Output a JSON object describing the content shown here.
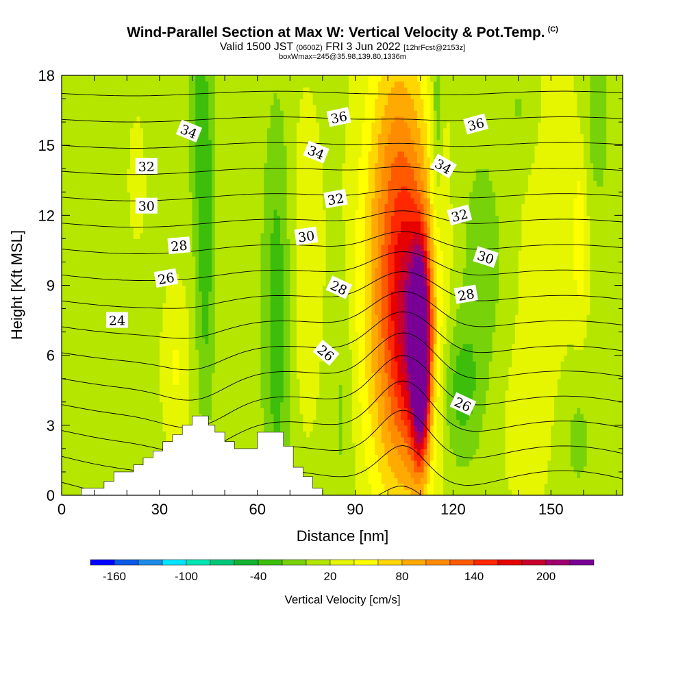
{
  "title_main": "Wind-Parallel Section at Max W: Vertical Velocity & Pot.Temp.",
  "title_copyright": "(C)",
  "subtitle_valid": "Valid 1500 JST",
  "subtitle_utc": "(0600Z)",
  "subtitle_date": "FRI 3 Jun 2022",
  "subtitle_fcst": "[12hrFcst@2153z]",
  "subtitle_box": "boxWmax=245@35.98,139.80,1336m",
  "chart_data": {
    "type": "heatmap",
    "xlabel": "Distance [nm]",
    "ylabel": "Height [Kft MSL]",
    "xlim": [
      0,
      172
    ],
    "ylim": [
      0,
      18
    ],
    "x_ticks": [
      0,
      30,
      60,
      90,
      120,
      150
    ],
    "y_ticks": [
      0,
      3,
      6,
      9,
      12,
      15,
      18
    ],
    "colorbar": {
      "label": "Vertical Velocity [cm/s]",
      "min": -180,
      "max": 240,
      "step": 20,
      "tick_labels": [
        "-160",
        "-100",
        "-40",
        "20",
        "80",
        "140",
        "200"
      ],
      "tick_values": [
        -160,
        -100,
        -40,
        20,
        80,
        140,
        200
      ],
      "colors": [
        "#0000ff",
        "#0a5ae6",
        "#1e8ce6",
        "#00e6ff",
        "#00e6b4",
        "#00c878",
        "#14b432",
        "#3cbe0a",
        "#78d20a",
        "#b4e600",
        "#e6f500",
        "#ffff00",
        "#ffd700",
        "#ffaa00",
        "#ff8c00",
        "#ff5a00",
        "#ff2800",
        "#e60000",
        "#c8002d",
        "#a0006e",
        "#780096"
      ]
    },
    "terrain": [
      [
        0,
        0
      ],
      [
        6,
        0
      ],
      [
        6,
        0.3
      ],
      [
        13,
        0.3
      ],
      [
        13,
        0.6
      ],
      [
        16,
        0.6
      ],
      [
        16,
        1.0
      ],
      [
        22,
        1.0
      ],
      [
        22,
        1.3
      ],
      [
        25,
        1.3
      ],
      [
        25,
        1.6
      ],
      [
        28,
        1.6
      ],
      [
        28,
        1.9
      ],
      [
        31,
        1.9
      ],
      [
        31,
        2.3
      ],
      [
        34,
        2.3
      ],
      [
        34,
        2.6
      ],
      [
        37,
        2.6
      ],
      [
        37,
        3.0
      ],
      [
        40,
        3.0
      ],
      [
        40,
        3.4
      ],
      [
        45,
        3.4
      ],
      [
        45,
        3.0
      ],
      [
        47,
        3.0
      ],
      [
        47,
        2.7
      ],
      [
        50,
        2.7
      ],
      [
        50,
        2.3
      ],
      [
        53,
        2.3
      ],
      [
        53,
        2.0
      ],
      [
        60,
        2.0
      ],
      [
        60,
        2.7
      ],
      [
        68,
        2.7
      ],
      [
        68,
        2.1
      ],
      [
        71,
        2.1
      ],
      [
        71,
        1.2
      ],
      [
        74,
        1.2
      ],
      [
        74,
        0.8
      ],
      [
        77,
        0.8
      ],
      [
        77,
        0.3
      ],
      [
        80,
        0.3
      ],
      [
        80,
        0
      ],
      [
        0,
        0
      ]
    ],
    "velocity_features": [
      {
        "x": 110,
        "z": 6.0,
        "sx": 1.8,
        "sz": 2.8,
        "w": 230
      },
      {
        "x": 108,
        "z": 7.0,
        "sx": 4.0,
        "sz": 3.5,
        "w": 80
      },
      {
        "x": 104,
        "z": 6.5,
        "sx": 7.5,
        "sz": 5.5,
        "w": 90
      },
      {
        "x": 102,
        "z": 11.0,
        "sx": 8.0,
        "sz": 6.0,
        "w": 45
      },
      {
        "x": 104,
        "z": 15.5,
        "sx": 6.0,
        "sz": 4.0,
        "w": 40
      },
      {
        "x": 115,
        "z": 16.0,
        "sx": 1.2,
        "sz": 3.0,
        "w": -40
      },
      {
        "x": 122,
        "z": 4.5,
        "sx": 4.5,
        "sz": 2.2,
        "w": -45
      },
      {
        "x": 129,
        "z": 10.0,
        "sx": 5.0,
        "sz": 3.5,
        "w": -25
      },
      {
        "x": 66,
        "z": 7.5,
        "sx": 3.0,
        "sz": 6.0,
        "w": -45
      },
      {
        "x": 44,
        "z": 10.5,
        "sx": 2.0,
        "sz": 5.0,
        "w": -45
      },
      {
        "x": 42,
        "z": 16.5,
        "sx": 2.5,
        "sz": 3.0,
        "w": -30
      },
      {
        "x": 75,
        "z": 10.0,
        "sx": 3.5,
        "sz": 5.0,
        "w": 25
      },
      {
        "x": 86,
        "z": 4.0,
        "sx": 2.5,
        "sz": 4.0,
        "w": -20
      },
      {
        "x": 35,
        "z": 5.5,
        "sx": 3.0,
        "sz": 2.5,
        "w": 30
      },
      {
        "x": 23,
        "z": 13.5,
        "sx": 3.0,
        "sz": 3.0,
        "w": 12
      },
      {
        "x": 150,
        "z": 12.5,
        "sx": 8.0,
        "sz": 6.0,
        "w": 20
      },
      {
        "x": 159,
        "z": 11.0,
        "sx": 1.5,
        "sz": 2.5,
        "w": 35
      },
      {
        "x": 164,
        "z": 16.0,
        "sx": 3.0,
        "sz": 3.0,
        "w": -25
      },
      {
        "x": 141,
        "z": 16.5,
        "sx": 4.0,
        "sz": 2.0,
        "w": -20
      },
      {
        "x": 5,
        "z": 10.0,
        "sx": 6.0,
        "sz": 8.0,
        "w": -10
      },
      {
        "x": 12,
        "z": 3.0,
        "sx": 6.0,
        "sz": 3.0,
        "w": -5
      },
      {
        "x": 158,
        "z": 2.5,
        "sx": 4.0,
        "sz": 2.0,
        "w": -20
      },
      {
        "x": 142,
        "z": 3.0,
        "sx": 6.0,
        "sz": 3.0,
        "w": 15
      }
    ],
    "theta_levels": [
      20,
      21,
      22,
      23,
      24,
      25,
      26,
      27,
      28,
      29,
      30,
      31,
      32,
      33,
      34,
      35,
      36,
      37
    ],
    "theta_labels": [
      {
        "text": "24",
        "x": 17,
        "z": 7.5,
        "rot": 0
      },
      {
        "text": "26",
        "x": 32,
        "z": 9.3,
        "rot": -10
      },
      {
        "text": "28",
        "x": 36,
        "z": 10.7,
        "rot": -5
      },
      {
        "text": "30",
        "x": 26,
        "z": 12.4,
        "rot": 0
      },
      {
        "text": "32",
        "x": 26,
        "z": 14.1,
        "rot": 0
      },
      {
        "text": "34",
        "x": 39,
        "z": 15.6,
        "rot": 22
      },
      {
        "text": "30",
        "x": 75,
        "z": 11.1,
        "rot": -8
      },
      {
        "text": "28",
        "x": 85,
        "z": 8.9,
        "rot": 25
      },
      {
        "text": "26",
        "x": 81,
        "z": 6.1,
        "rot": 40
      },
      {
        "text": "32",
        "x": 84,
        "z": 12.7,
        "rot": -10
      },
      {
        "text": "34",
        "x": 78,
        "z": 14.7,
        "rot": 22
      },
      {
        "text": "36",
        "x": 85,
        "z": 16.2,
        "rot": -12
      },
      {
        "text": "34",
        "x": 117,
        "z": 14.1,
        "rot": 30
      },
      {
        "text": "32",
        "x": 122,
        "z": 12.0,
        "rot": -15
      },
      {
        "text": "30",
        "x": 130,
        "z": 10.2,
        "rot": 18
      },
      {
        "text": "28",
        "x": 124,
        "z": 8.6,
        "rot": -10
      },
      {
        "text": "26",
        "x": 123,
        "z": 3.9,
        "rot": 25
      },
      {
        "text": "36",
        "x": 127,
        "z": 15.9,
        "rot": -15
      }
    ]
  }
}
